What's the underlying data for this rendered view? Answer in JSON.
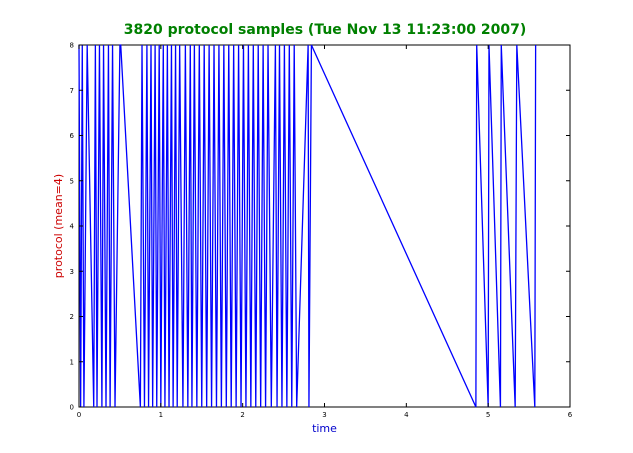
{
  "chart_data": {
    "type": "line",
    "title": "3820 protocol samples (Tue Nov 13 11:23:00 2007)",
    "xlabel": "time",
    "ylabel": "protocol (mean=4)",
    "xlim": [
      0,
      6
    ],
    "ylim": [
      0,
      8
    ],
    "xticks": [
      "0",
      "1",
      "2",
      "3",
      "4",
      "5",
      "6"
    ],
    "yticks": [
      "0",
      "1",
      "2",
      "3",
      "4",
      "5",
      "6",
      "7",
      "8"
    ],
    "grid": false,
    "colors": {
      "title": "#008000",
      "xlabel": "#0000cc",
      "ylabel": "#cc0000",
      "line": "#0000ff"
    },
    "series": [
      {
        "name": "",
        "x": [
          0.0,
          0.02,
          0.04,
          0.06,
          0.1,
          0.18,
          0.2,
          0.22,
          0.25,
          0.28,
          0.3,
          0.33,
          0.36,
          0.38,
          0.41,
          0.44,
          0.5,
          0.51,
          0.75,
          0.77,
          0.8,
          0.83,
          0.85,
          0.88,
          0.9,
          0.93,
          0.95,
          0.98,
          1.0,
          1.03,
          1.05,
          1.08,
          1.1,
          1.13,
          1.15,
          1.18,
          1.2,
          1.23,
          1.27,
          1.3,
          1.33,
          1.36,
          1.38,
          1.41,
          1.44,
          1.47,
          1.5,
          1.53,
          1.56,
          1.59,
          1.62,
          1.65,
          1.68,
          1.71,
          1.74,
          1.77,
          1.8,
          1.83,
          1.86,
          1.89,
          1.92,
          1.95,
          1.98,
          2.01,
          2.04,
          2.07,
          2.1,
          2.13,
          2.16,
          2.19,
          2.22,
          2.25,
          2.28,
          2.31,
          2.35,
          2.4,
          2.42,
          2.45,
          2.48,
          2.51,
          2.54,
          2.57,
          2.6,
          2.63,
          2.66,
          2.8,
          2.81,
          2.84,
          4.85,
          4.86,
          5.0,
          5.01,
          5.15,
          5.16,
          5.33,
          5.35,
          5.57,
          5.58
        ],
        "y": [
          8,
          0,
          8,
          0,
          8,
          0,
          8,
          0,
          8,
          0,
          8,
          0,
          8,
          0,
          8,
          0,
          8,
          8,
          0,
          8,
          0,
          8,
          0,
          8,
          0,
          8,
          0,
          8,
          0,
          8,
          0,
          8,
          0,
          8,
          0,
          8,
          0,
          8,
          0,
          8,
          0,
          8,
          0,
          8,
          0,
          8,
          0,
          8,
          0,
          8,
          0,
          8,
          0,
          8,
          0,
          8,
          0,
          8,
          0,
          8,
          0,
          8,
          0,
          8,
          0,
          8,
          0,
          8,
          0,
          8,
          0,
          8,
          0,
          8,
          0,
          8,
          0,
          8,
          0,
          8,
          0,
          8,
          0,
          8,
          0,
          8,
          0,
          8,
          0,
          8,
          0,
          8,
          0,
          8,
          0,
          8,
          0,
          8
        ]
      }
    ]
  }
}
